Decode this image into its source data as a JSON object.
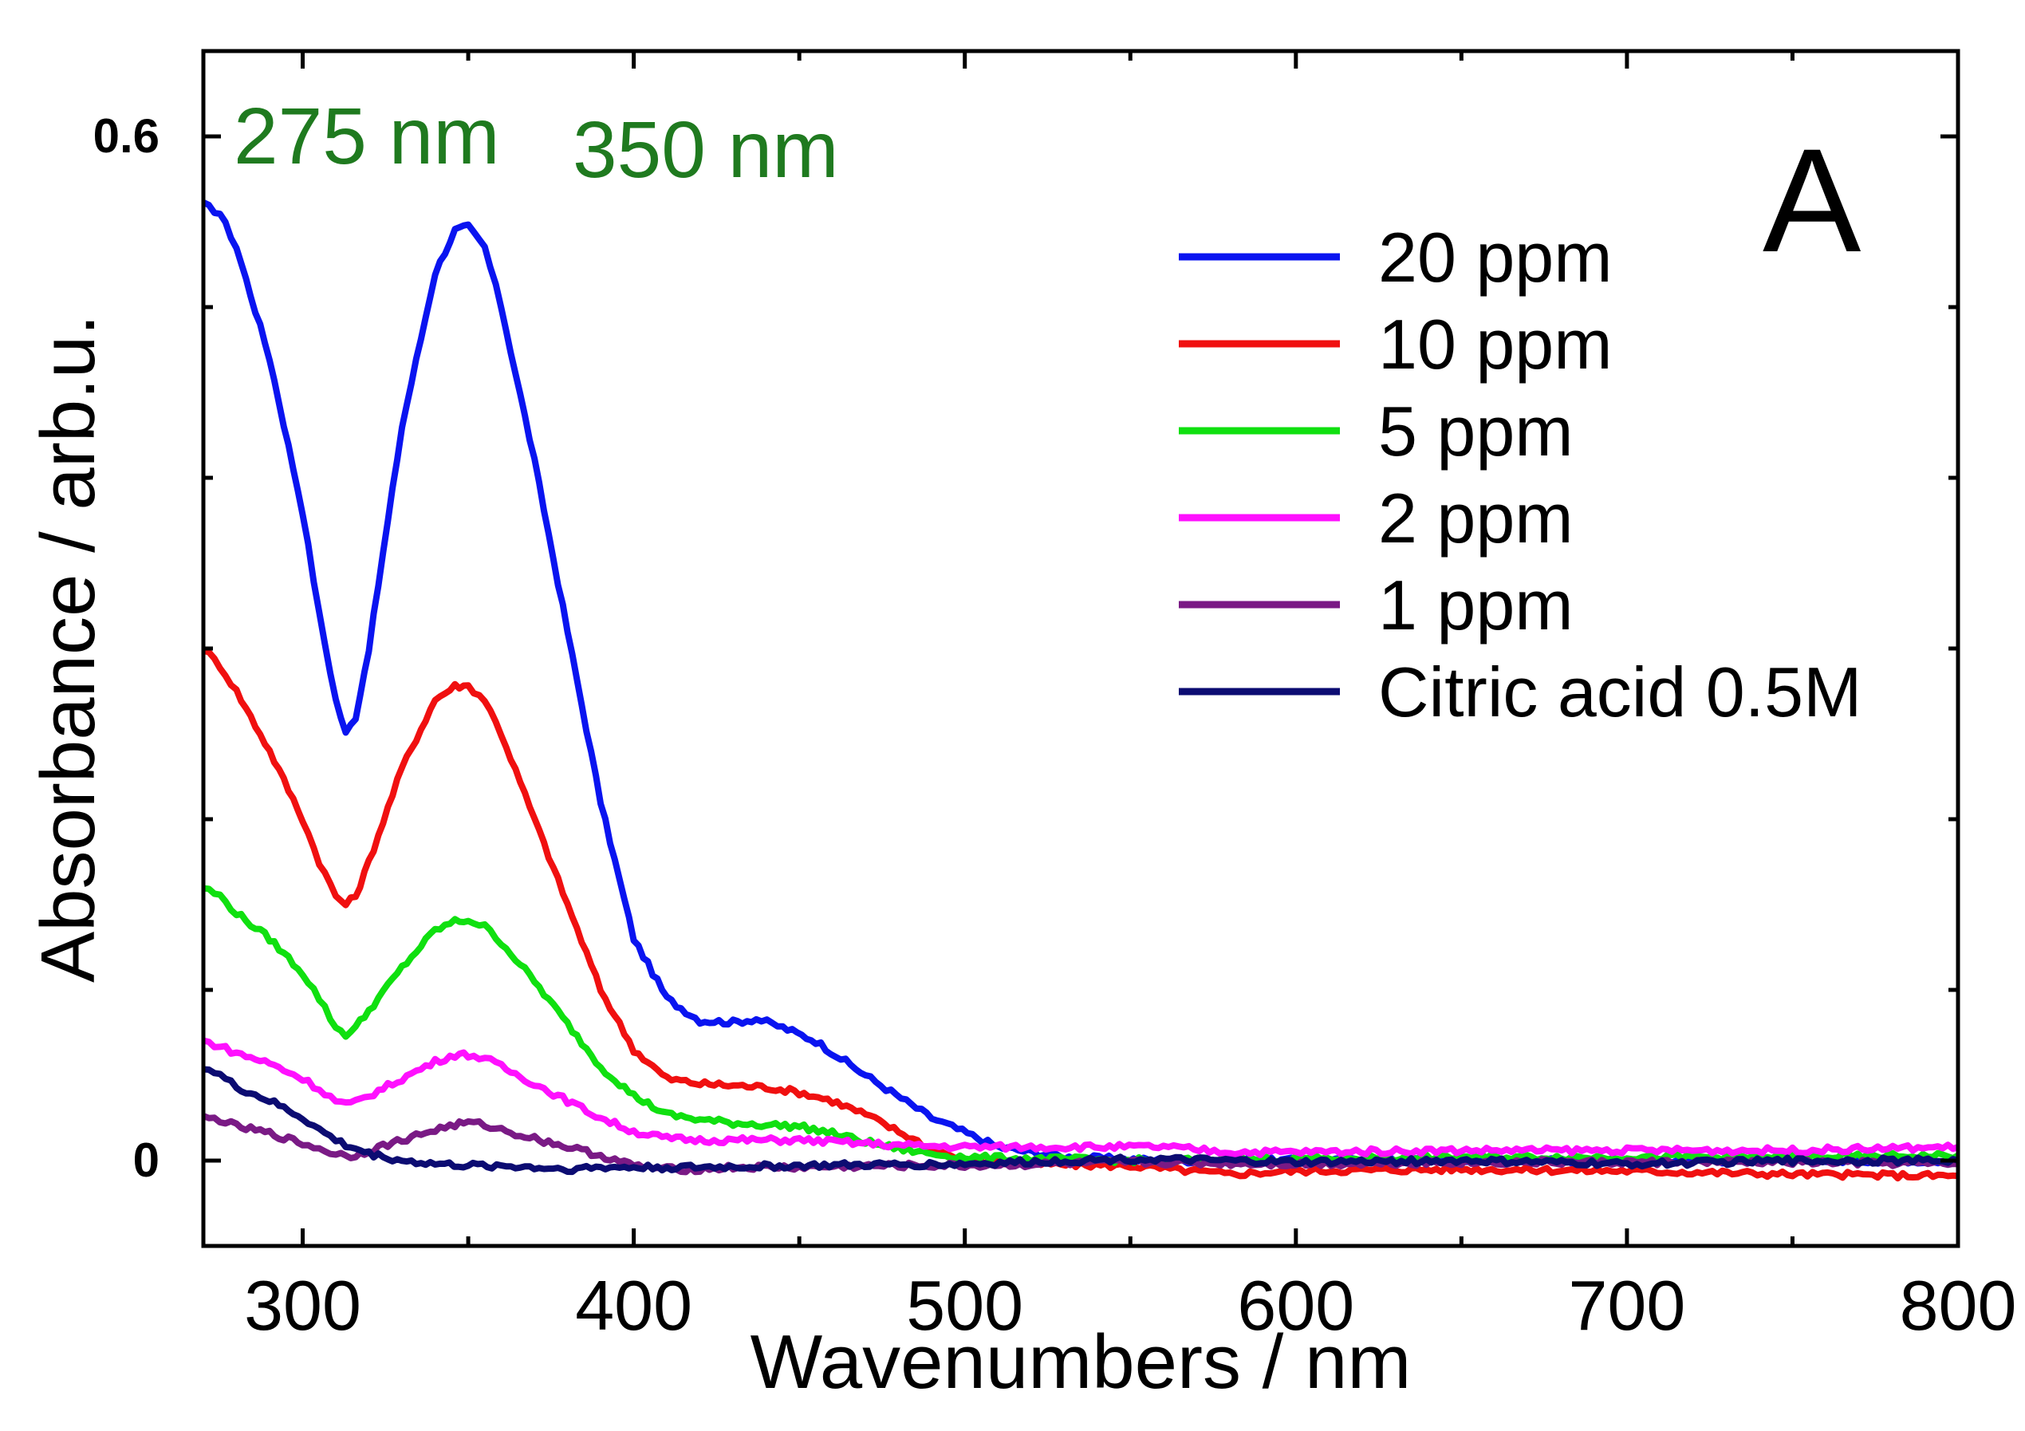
{
  "chart_data": {
    "type": "line",
    "title": "",
    "panel_label": "A",
    "xlabel": "Wavenumbers / nm",
    "ylabel": "Absorbance / arb.u.",
    "xlim": [
      270,
      800
    ],
    "ylim": [
      -0.05,
      0.65
    ],
    "x_ticks": [
      300,
      400,
      500,
      600,
      700,
      800
    ],
    "x_tick_labels": [
      "300",
      "400",
      "500",
      "600",
      "700",
      "800"
    ],
    "x_minor_ticks": [
      350,
      450,
      550,
      650,
      750
    ],
    "y_ticks": [
      0,
      0.6
    ],
    "y_tick_labels": [
      "0",
      "0.6"
    ],
    "y_minor_ticks": [
      0.1,
      0.2,
      0.3,
      0.4,
      0.5
    ],
    "grid": false,
    "legend_position": "top-right",
    "annotations": [
      {
        "text": "275 nm",
        "color": "#1f7a1f",
        "x": 285,
        "y": 0.63
      },
      {
        "text": "350 nm",
        "color": "#1f7a1f",
        "x": 390,
        "y": 0.62
      }
    ],
    "series": [
      {
        "name": "20 ppm",
        "color": "#0a14f0",
        "x": [
          270,
          275,
          280,
          290,
          300,
          305,
          310,
          313,
          316,
          320,
          330,
          340,
          346,
          350,
          355,
          360,
          370,
          380,
          390,
          400,
          410,
          420,
          430,
          437,
          445,
          455,
          470,
          490,
          510,
          530,
          560,
          600,
          650,
          700,
          750,
          800
        ],
        "y": [
          0.56,
          0.555,
          0.535,
          0.47,
          0.38,
          0.32,
          0.27,
          0.25,
          0.26,
          0.3,
          0.43,
          0.52,
          0.545,
          0.547,
          0.535,
          0.5,
          0.41,
          0.31,
          0.21,
          0.13,
          0.095,
          0.082,
          0.081,
          0.083,
          0.078,
          0.07,
          0.05,
          0.025,
          0.008,
          0.002,
          0.0,
          0.0,
          0.0,
          0.0,
          0.0,
          0.0
        ]
      },
      {
        "name": "10 ppm",
        "color": "#f01010",
        "x": [
          270,
          275,
          280,
          290,
          300,
          305,
          310,
          313,
          316,
          320,
          330,
          340,
          346,
          350,
          355,
          360,
          370,
          380,
          390,
          400,
          410,
          420,
          430,
          440,
          450,
          460,
          470,
          480,
          490,
          500,
          520,
          550,
          580,
          600,
          650,
          700,
          750,
          800
        ],
        "y": [
          0.3,
          0.29,
          0.275,
          0.24,
          0.2,
          0.175,
          0.155,
          0.15,
          0.155,
          0.175,
          0.23,
          0.27,
          0.278,
          0.278,
          0.27,
          0.25,
          0.2,
          0.15,
          0.1,
          0.065,
          0.048,
          0.045,
          0.044,
          0.043,
          0.04,
          0.035,
          0.027,
          0.017,
          0.007,
          0.0,
          -0.002,
          -0.003,
          -0.008,
          -0.006,
          -0.005,
          -0.006,
          -0.008,
          -0.009
        ]
      },
      {
        "name": "5 ppm",
        "color": "#10e010",
        "x": [
          270,
          275,
          280,
          290,
          300,
          305,
          310,
          313,
          316,
          320,
          330,
          340,
          346,
          350,
          355,
          360,
          370,
          380,
          390,
          400,
          410,
          420,
          430,
          440,
          450,
          460,
          470,
          480,
          490,
          500,
          520,
          560,
          600,
          650,
          700,
          750,
          800
        ],
        "y": [
          0.16,
          0.155,
          0.145,
          0.13,
          0.11,
          0.095,
          0.078,
          0.074,
          0.078,
          0.088,
          0.113,
          0.135,
          0.14,
          0.141,
          0.137,
          0.128,
          0.105,
          0.08,
          0.055,
          0.038,
          0.027,
          0.024,
          0.022,
          0.021,
          0.02,
          0.016,
          0.011,
          0.007,
          0.004,
          0.002,
          0.001,
          0.0,
          0.001,
          0.002,
          0.002,
          0.002,
          0.003
        ]
      },
      {
        "name": "2 ppm",
        "color": "#ff10ff",
        "x": [
          270,
          275,
          280,
          290,
          300,
          305,
          310,
          313,
          316,
          320,
          330,
          340,
          346,
          350,
          355,
          360,
          370,
          380,
          390,
          400,
          410,
          420,
          430,
          440,
          450,
          460,
          480,
          500,
          520,
          560,
          580,
          600,
          650,
          700,
          750,
          800
        ],
        "y": [
          0.07,
          0.067,
          0.063,
          0.057,
          0.048,
          0.042,
          0.035,
          0.033,
          0.034,
          0.038,
          0.048,
          0.058,
          0.062,
          0.062,
          0.06,
          0.055,
          0.045,
          0.035,
          0.025,
          0.017,
          0.013,
          0.012,
          0.012,
          0.012,
          0.012,
          0.011,
          0.009,
          0.008,
          0.008,
          0.008,
          0.005,
          0.005,
          0.006,
          0.006,
          0.006,
          0.008
        ]
      },
      {
        "name": "1 ppm",
        "color": "#7a1a85",
        "x": [
          270,
          275,
          280,
          290,
          300,
          305,
          310,
          313,
          316,
          320,
          330,
          340,
          346,
          350,
          355,
          360,
          370,
          380,
          390,
          400,
          410,
          420,
          430,
          450,
          480,
          500,
          550,
          600,
          650,
          700,
          750,
          800
        ],
        "y": [
          0.025,
          0.024,
          0.02,
          0.016,
          0.01,
          0.007,
          0.004,
          0.003,
          0.003,
          0.006,
          0.012,
          0.018,
          0.021,
          0.022,
          0.021,
          0.018,
          0.013,
          0.008,
          0.003,
          -0.003,
          -0.005,
          -0.005,
          -0.004,
          -0.004,
          -0.003,
          -0.003,
          -0.001,
          -0.002,
          -0.001,
          -0.001,
          -0.001,
          -0.002
        ]
      },
      {
        "name": "Citric acid 0.5M",
        "color": "#0c0c72",
        "x": [
          270,
          275,
          280,
          290,
          300,
          305,
          310,
          313,
          316,
          320,
          330,
          340,
          350,
          360,
          370,
          380,
          390,
          400,
          410,
          420,
          450,
          500,
          550,
          600,
          650,
          700,
          750,
          800
        ],
        "y": [
          0.055,
          0.05,
          0.043,
          0.035,
          0.025,
          0.018,
          0.012,
          0.009,
          0.007,
          0.004,
          0.0,
          -0.002,
          -0.003,
          -0.003,
          -0.004,
          -0.005,
          -0.004,
          -0.004,
          -0.004,
          -0.004,
          -0.003,
          -0.002,
          0.001,
          -0.001,
          0.0,
          -0.002,
          0.0,
          0.0
        ]
      }
    ]
  }
}
